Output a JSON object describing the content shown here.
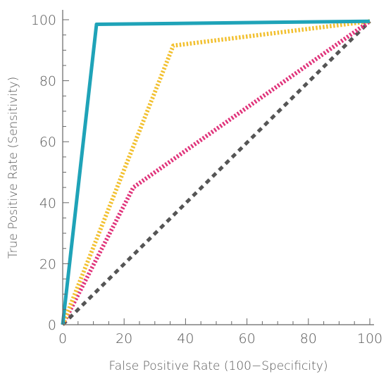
{
  "chart_data": {
    "type": "line",
    "title": "",
    "xlabel": "False Positive Rate (100−Specificity)",
    "ylabel": "True Positive Rate (Sensitivity)",
    "xlim": [
      0,
      100
    ],
    "ylim": [
      0,
      100
    ],
    "x_ticks": [
      "0",
      "20",
      "40",
      "60",
      "80",
      "100"
    ],
    "y_ticks": [
      "0",
      "20",
      "40",
      "60",
      "80",
      "100"
    ],
    "grid": false,
    "legend": "none",
    "series": [
      {
        "color": "#1fa3b8",
        "style": "solid",
        "x": [
          0,
          11,
          100
        ],
        "y": [
          0,
          98.5,
          99.5
        ]
      },
      {
        "color": "#f2c02f",
        "style": "dotted",
        "x": [
          0,
          36,
          100
        ],
        "y": [
          0,
          91.5,
          99.5
        ]
      },
      {
        "color": "#e0337a",
        "style": "dotted",
        "x": [
          0,
          23,
          100
        ],
        "y": [
          0,
          45,
          99.5
        ]
      },
      {
        "color": "#555555",
        "style": "dashed",
        "x": [
          0,
          100
        ],
        "y": [
          0,
          99.5
        ]
      }
    ]
  }
}
